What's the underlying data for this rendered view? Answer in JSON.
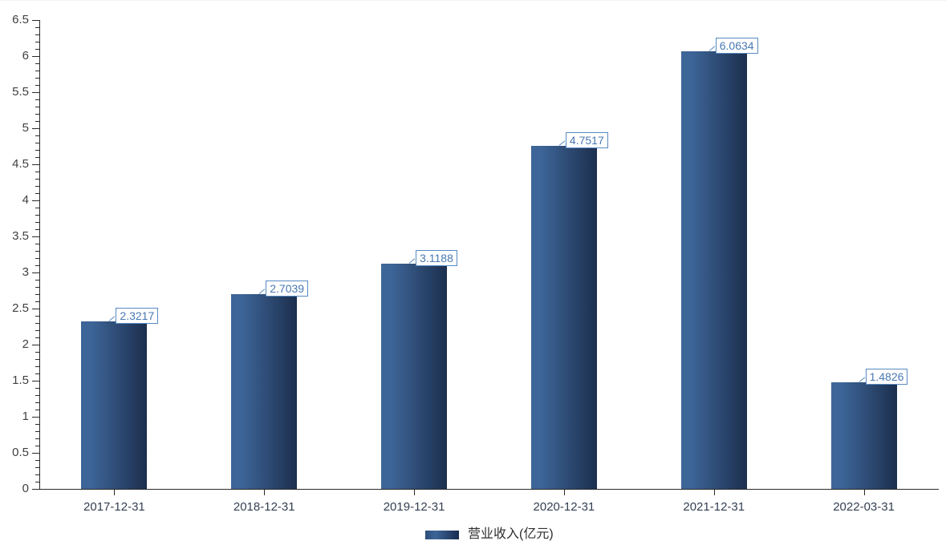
{
  "chart_data": {
    "type": "bar",
    "categories": [
      "2017-12-31",
      "2018-12-31",
      "2019-12-31",
      "2020-12-31",
      "2021-12-31",
      "2022-03-31"
    ],
    "values": [
      2.3217,
      2.7039,
      3.1188,
      4.7517,
      6.0634,
      1.4826
    ],
    "value_labels": [
      "2.3217",
      "2.7039",
      "3.1188",
      "4.7517",
      "6.0634",
      "1.4826"
    ],
    "series_name": "营业收入(亿元)",
    "title": "",
    "xlabel": "",
    "ylabel": "",
    "ylim": [
      0,
      6.5
    ],
    "ytick_step": 0.5,
    "ytick_minor_step": 0.1,
    "ytick_labels": [
      "0",
      "0.5",
      "1",
      "1.5",
      "2",
      "2.5",
      "3",
      "3.5",
      "4",
      "4.5",
      "5",
      "5.5",
      "6",
      "6.5"
    ],
    "grid": false,
    "legend_position": "bottom",
    "colors": {
      "bar_gradient_start": "#3d6598",
      "bar_gradient_end": "#1c2f4e",
      "value_label_text": "#4878b2",
      "value_label_border": "#568ac2",
      "axis": "#2a2a2a",
      "y_tick_label": "#404040",
      "x_tick_label": "#333f51",
      "legend_text": "#2f2f2f",
      "background": "#ffffff"
    }
  },
  "legend": {
    "label": "营业收入(亿元)"
  }
}
